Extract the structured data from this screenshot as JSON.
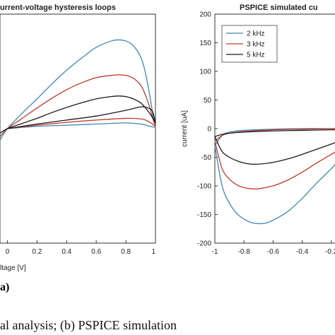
{
  "figure": {
    "panel_label": "a)",
    "caption": "al analysis; (b) PSPICE simulation"
  },
  "chart_data": [
    {
      "type": "line",
      "title": "urrent-voltage hysteresis loops",
      "xlabel": "ltage [V]",
      "ylabel": "",
      "xlim": [
        -0.05,
        1.0
      ],
      "ylim": [
        -200,
        200
      ],
      "xticks": [
        "0",
        "0.2",
        "0.4",
        "0.6",
        "0.8",
        "1"
      ],
      "grid": false,
      "series": [
        {
          "color": "#3a88b5",
          "upper": [
            [
              -0.05,
              -20
            ],
            [
              0,
              0
            ],
            [
              0.1,
              27
            ],
            [
              0.2,
              52
            ],
            [
              0.3,
              78
            ],
            [
              0.4,
              102
            ],
            [
              0.5,
              123
            ],
            [
              0.6,
              142
            ],
            [
              0.7,
              153
            ],
            [
              0.75,
              155
            ],
            [
              0.8,
              153
            ],
            [
              0.85,
              145
            ],
            [
              0.9,
              125
            ],
            [
              0.93,
              100
            ],
            [
              0.96,
              60
            ],
            [
              0.985,
              20
            ],
            [
              1.0,
              2
            ]
          ],
          "lower": [
            [
              0,
              0
            ],
            [
              0.2,
              4
            ],
            [
              0.4,
              6
            ],
            [
              0.6,
              8
            ],
            [
              0.8,
              10
            ],
            [
              0.9,
              8
            ],
            [
              0.95,
              5
            ],
            [
              1.0,
              2
            ]
          ]
        },
        {
          "color": "#c0392b",
          "upper": [
            [
              -0.05,
              -14
            ],
            [
              0,
              0
            ],
            [
              0.1,
              18
            ],
            [
              0.2,
              36
            ],
            [
              0.3,
              53
            ],
            [
              0.4,
              68
            ],
            [
              0.5,
              80
            ],
            [
              0.6,
              89
            ],
            [
              0.7,
              93
            ],
            [
              0.75,
              94
            ],
            [
              0.8,
              93
            ],
            [
              0.85,
              88
            ],
            [
              0.9,
              76
            ],
            [
              0.93,
              60
            ],
            [
              0.96,
              38
            ],
            [
              0.985,
              15
            ],
            [
              1.0,
              4
            ]
          ],
          "lower": [
            [
              0,
              0
            ],
            [
              0.2,
              6
            ],
            [
              0.4,
              11
            ],
            [
              0.6,
              15
            ],
            [
              0.8,
              18
            ],
            [
              0.9,
              17
            ],
            [
              0.95,
              13
            ],
            [
              1.0,
              4
            ]
          ]
        },
        {
          "color": "#1a1a1a",
          "upper": [
            [
              -0.05,
              -8
            ],
            [
              0,
              0
            ],
            [
              0.1,
              9
            ],
            [
              0.2,
              18
            ],
            [
              0.3,
              28
            ],
            [
              0.4,
              37
            ],
            [
              0.5,
              45
            ],
            [
              0.6,
              52
            ],
            [
              0.7,
              56
            ],
            [
              0.75,
              57
            ],
            [
              0.8,
              56
            ],
            [
              0.85,
              52
            ],
            [
              0.9,
              45
            ],
            [
              0.93,
              37
            ],
            [
              0.96,
              27
            ],
            [
              0.985,
              17
            ],
            [
              1.0,
              10
            ]
          ],
          "lower": [
            [
              0,
              0
            ],
            [
              0.2,
              8
            ],
            [
              0.4,
              15
            ],
            [
              0.6,
              22
            ],
            [
              0.8,
              32
            ],
            [
              0.9,
              38
            ],
            [
              0.95,
              36
            ],
            [
              0.98,
              30
            ],
            [
              1.0,
              10
            ]
          ]
        }
      ]
    },
    {
      "type": "line",
      "title": "PSPICE simulated cu",
      "xlabel": "",
      "ylabel": "current [uA]",
      "xlim": [
        -1.0,
        -0.15
      ],
      "ylim": [
        -200,
        200
      ],
      "xticks": [
        "-1",
        "-0.8",
        "-0.6",
        "-0.4",
        "-0.2"
      ],
      "yticks": [
        "200",
        "150",
        "100",
        "50",
        "0",
        "-50",
        "-100",
        "-150",
        "-200"
      ],
      "legend": {
        "position": "top-left",
        "entries": [
          "2 kHz",
          "3 kHz",
          "5 kHz"
        ]
      },
      "grid": false,
      "series": [
        {
          "name": "2 kHz",
          "color": "#3a88b5",
          "lower": [
            [
              -1.0,
              -30
            ],
            [
              -0.95,
              -100
            ],
            [
              -0.9,
              -130
            ],
            [
              -0.85,
              -148
            ],
            [
              -0.8,
              -158
            ],
            [
              -0.75,
              -164
            ],
            [
              -0.7,
              -166
            ],
            [
              -0.65,
              -165
            ],
            [
              -0.6,
              -160
            ],
            [
              -0.5,
              -145
            ],
            [
              -0.4,
              -122
            ],
            [
              -0.3,
              -95
            ],
            [
              -0.2,
              -70
            ],
            [
              -0.15,
              -55
            ]
          ],
          "upper": [
            [
              -1.0,
              -30
            ],
            [
              -0.95,
              -12
            ],
            [
              -0.9,
              -6
            ],
            [
              -0.8,
              -3
            ],
            [
              -0.6,
              -1
            ],
            [
              -0.4,
              0
            ],
            [
              -0.2,
              0
            ],
            [
              -0.15,
              0
            ]
          ]
        },
        {
          "name": "3 kHz",
          "color": "#c0392b",
          "lower": [
            [
              -1.0,
              -22
            ],
            [
              -0.95,
              -70
            ],
            [
              -0.9,
              -88
            ],
            [
              -0.85,
              -98
            ],
            [
              -0.8,
              -103
            ],
            [
              -0.75,
              -105
            ],
            [
              -0.7,
              -105
            ],
            [
              -0.6,
              -100
            ],
            [
              -0.5,
              -90
            ],
            [
              -0.4,
              -76
            ],
            [
              -0.3,
              -60
            ],
            [
              -0.2,
              -45
            ],
            [
              -0.15,
              -38
            ]
          ],
          "upper": [
            [
              -1.0,
              -22
            ],
            [
              -0.95,
              -12
            ],
            [
              -0.9,
              -8
            ],
            [
              -0.8,
              -5
            ],
            [
              -0.6,
              -2
            ],
            [
              -0.4,
              -1
            ],
            [
              -0.2,
              0
            ],
            [
              -0.15,
              0
            ]
          ]
        },
        {
          "name": "5 kHz",
          "color": "#1a1a1a",
          "lower": [
            [
              -1.0,
              -14
            ],
            [
              -0.95,
              -40
            ],
            [
              -0.9,
              -50
            ],
            [
              -0.85,
              -56
            ],
            [
              -0.8,
              -60
            ],
            [
              -0.75,
              -62
            ],
            [
              -0.7,
              -62
            ],
            [
              -0.6,
              -59
            ],
            [
              -0.5,
              -53
            ],
            [
              -0.4,
              -45
            ],
            [
              -0.3,
              -36
            ],
            [
              -0.2,
              -27
            ],
            [
              -0.15,
              -22
            ]
          ],
          "upper": [
            [
              -1.0,
              -14
            ],
            [
              -0.95,
              -10
            ],
            [
              -0.9,
              -8
            ],
            [
              -0.8,
              -6
            ],
            [
              -0.6,
              -4
            ],
            [
              -0.4,
              -3
            ],
            [
              -0.2,
              -2
            ],
            [
              -0.15,
              -2
            ]
          ]
        }
      ]
    }
  ]
}
